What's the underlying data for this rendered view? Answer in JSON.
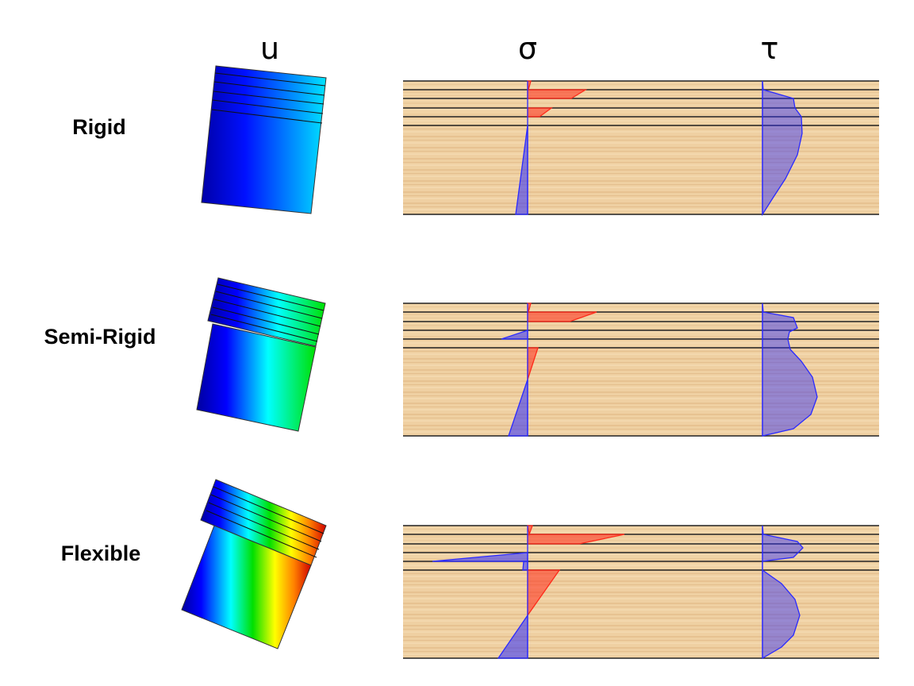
{
  "column_headers": {
    "displacement": "u",
    "normal_stress": "σ",
    "shear_stress": "τ"
  },
  "rows": [
    {
      "label": "Rigid"
    },
    {
      "label": "Semi-Rigid"
    },
    {
      "label": "Flexible"
    }
  ],
  "colors": {
    "tension": "#ff2a1a",
    "compression": "#2a2aff",
    "shear": "#2a2aff",
    "layer_lines": "#222222",
    "wood_light": "#f1d3a6",
    "wood_dark": "#e2b987"
  }
}
